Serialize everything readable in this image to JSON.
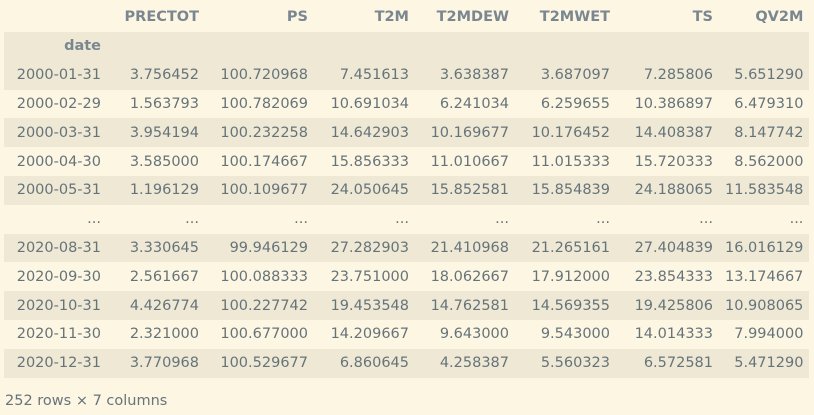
{
  "table": {
    "index_name": "date",
    "columns": [
      "PRECTOT",
      "PS",
      "T2M",
      "T2MDEW",
      "T2MWET",
      "TS",
      "QV2M"
    ],
    "rows": [
      {
        "index": "2000-01-31",
        "values": [
          "3.756452",
          "100.720968",
          "7.451613",
          "3.638387",
          "3.687097",
          "7.285806",
          "5.651290"
        ]
      },
      {
        "index": "2000-02-29",
        "values": [
          "1.563793",
          "100.782069",
          "10.691034",
          "6.241034",
          "6.259655",
          "10.386897",
          "6.479310"
        ]
      },
      {
        "index": "2000-03-31",
        "values": [
          "3.954194",
          "100.232258",
          "14.642903",
          "10.169677",
          "10.176452",
          "14.408387",
          "8.147742"
        ]
      },
      {
        "index": "2000-04-30",
        "values": [
          "3.585000",
          "100.174667",
          "15.856333",
          "11.010667",
          "11.015333",
          "15.720333",
          "8.562000"
        ]
      },
      {
        "index": "2000-05-31",
        "values": [
          "1.196129",
          "100.109677",
          "24.050645",
          "15.852581",
          "15.854839",
          "24.188065",
          "11.583548"
        ]
      },
      {
        "index": "...",
        "values": [
          "...",
          "...",
          "...",
          "...",
          "...",
          "...",
          "..."
        ]
      },
      {
        "index": "2020-08-31",
        "values": [
          "3.330645",
          "99.946129",
          "27.282903",
          "21.410968",
          "21.265161",
          "27.404839",
          "16.016129"
        ]
      },
      {
        "index": "2020-09-30",
        "values": [
          "2.561667",
          "100.088333",
          "23.751000",
          "18.062667",
          "17.912000",
          "23.854333",
          "13.174667"
        ]
      },
      {
        "index": "2020-10-31",
        "values": [
          "4.426774",
          "100.227742",
          "19.453548",
          "14.762581",
          "14.569355",
          "19.425806",
          "10.908065"
        ]
      },
      {
        "index": "2020-11-30",
        "values": [
          "2.321000",
          "100.677000",
          "14.209667",
          "9.643000",
          "9.543000",
          "14.014333",
          "7.994000"
        ]
      },
      {
        "index": "2020-12-31",
        "values": [
          "3.770968",
          "100.529677",
          "6.860645",
          "4.258387",
          "5.560323",
          "6.572581",
          "5.471290"
        ]
      }
    ]
  },
  "footer": {
    "shape_text": "252 rows × 7 columns"
  },
  "colors": {
    "background": "#fdf6e3",
    "stripe": "#eee8d5",
    "header_text": "#7a8790",
    "body_text": "#66747a"
  }
}
